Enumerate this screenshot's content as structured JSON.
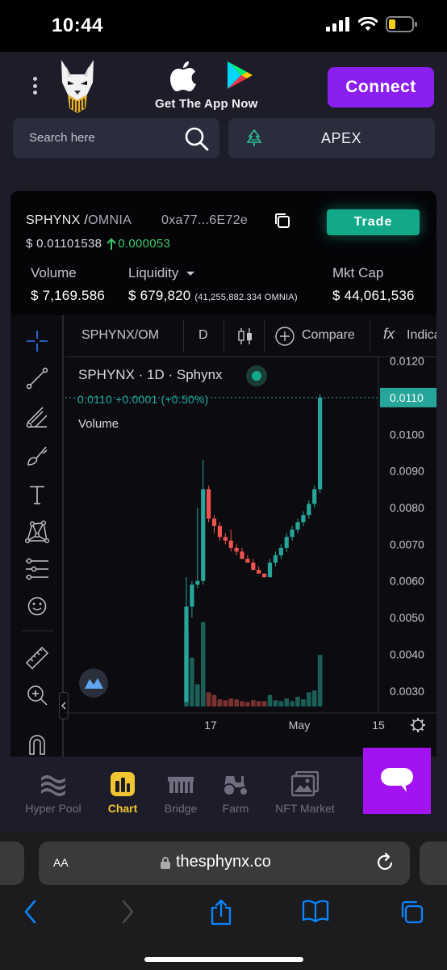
{
  "status": {
    "time": "10:44"
  },
  "header": {
    "store_caption": "Get The App Now",
    "connect_label": "Connect",
    "search_placeholder": "Search here",
    "token_name": "APEX"
  },
  "token": {
    "base": "SPHYNX /",
    "quote": "OMNIA",
    "contract": "0xa77...6E72e",
    "trade_label": "Trade",
    "price": "$ 0.01101538",
    "change": "0.000053"
  },
  "stats": {
    "volume_label": "Volume",
    "volume_value": "$ 7,169.586",
    "liquidity_label": "Liquidity",
    "liquidity_value": "$ 679,820",
    "liquidity_sub": "(41,255,882.334 OMNIA)",
    "mktcap_label": "Mkt Cap",
    "mktcap_value": "$ 44,061,536"
  },
  "chart_toolbar": {
    "symbol": "SPHYNX/OM",
    "interval": "D",
    "compare": "Compare",
    "indicators": "Indica"
  },
  "chart_legend": {
    "title": "SPHYNX · 1D · Sphynx",
    "ohlc": "0.0110 +0.0001 (+0.50%)",
    "volume": "Volume"
  },
  "chart_data": {
    "type": "candlestick",
    "y_ticks": [
      "0.0120",
      "0.0110",
      "0.0100",
      "0.0090",
      "0.0080",
      "0.0070",
      "0.0060",
      "0.0050",
      "0.0040",
      "0.0030"
    ],
    "x_ticks": [
      "17",
      "May",
      "15"
    ],
    "ylim": [
      0.0024,
      0.0121
    ],
    "last_price_label": "0.0110",
    "last_price": 0.011,
    "up_color": "#26a69a",
    "down_color": "#ef5350",
    "candles": [
      {
        "o": 0.0027,
        "h": 0.0061,
        "l": 0.0027,
        "c": 0.0053
      },
      {
        "o": 0.0053,
        "h": 0.006,
        "l": 0.005,
        "c": 0.0059
      },
      {
        "o": 0.0059,
        "h": 0.008,
        "l": 0.0058,
        "c": 0.006
      },
      {
        "o": 0.006,
        "h": 0.0093,
        "l": 0.0059,
        "c": 0.0085
      },
      {
        "o": 0.0085,
        "h": 0.0086,
        "l": 0.0076,
        "c": 0.0077
      },
      {
        "o": 0.0077,
        "h": 0.0078,
        "l": 0.0073,
        "c": 0.0075
      },
      {
        "o": 0.0075,
        "h": 0.0076,
        "l": 0.0071,
        "c": 0.0072
      },
      {
        "o": 0.0072,
        "h": 0.0073,
        "l": 0.007,
        "c": 0.0071
      },
      {
        "o": 0.0071,
        "h": 0.0074,
        "l": 0.0068,
        "c": 0.0069
      },
      {
        "o": 0.0069,
        "h": 0.007,
        "l": 0.0067,
        "c": 0.0068
      },
      {
        "o": 0.0068,
        "h": 0.0069,
        "l": 0.0066,
        "c": 0.0066
      },
      {
        "o": 0.0066,
        "h": 0.0067,
        "l": 0.0065,
        "c": 0.0065
      },
      {
        "o": 0.0065,
        "h": 0.0066,
        "l": 0.0063,
        "c": 0.0063
      },
      {
        "o": 0.0063,
        "h": 0.0064,
        "l": 0.0062,
        "c": 0.0062
      },
      {
        "o": 0.0062,
        "h": 0.0062,
        "l": 0.0061,
        "c": 0.0061
      },
      {
        "o": 0.0061,
        "h": 0.0066,
        "l": 0.0061,
        "c": 0.0065
      },
      {
        "o": 0.0065,
        "h": 0.0068,
        "l": 0.0064,
        "c": 0.0067
      },
      {
        "o": 0.0067,
        "h": 0.007,
        "l": 0.0066,
        "c": 0.0069
      },
      {
        "o": 0.0069,
        "h": 0.0073,
        "l": 0.0068,
        "c": 0.0072
      },
      {
        "o": 0.0072,
        "h": 0.0075,
        "l": 0.0071,
        "c": 0.0074
      },
      {
        "o": 0.0074,
        "h": 0.0077,
        "l": 0.0073,
        "c": 0.0076
      },
      {
        "o": 0.0076,
        "h": 0.0079,
        "l": 0.0075,
        "c": 0.0078
      },
      {
        "o": 0.0078,
        "h": 0.0082,
        "l": 0.0077,
        "c": 0.0081
      },
      {
        "o": 0.0081,
        "h": 0.0086,
        "l": 0.008,
        "c": 0.0085
      },
      {
        "o": 0.0085,
        "h": 0.0111,
        "l": 0.0084,
        "c": 0.011
      }
    ],
    "volumes": [
      0.85,
      0.55,
      0.25,
      0.95,
      0.16,
      0.13,
      0.08,
      0.07,
      0.09,
      0.08,
      0.06,
      0.05,
      0.07,
      0.06,
      0.06,
      0.13,
      0.07,
      0.06,
      0.09,
      0.06,
      0.11,
      0.08,
      0.16,
      0.18,
      0.58
    ]
  },
  "tabs": [
    {
      "label": "Hyper Pool"
    },
    {
      "label": "Chart"
    },
    {
      "label": "Bridge"
    },
    {
      "label": "Farm"
    },
    {
      "label": "NFT Market"
    }
  ],
  "safari": {
    "aa": "AA",
    "url": "thesphynx.co"
  },
  "colors": {
    "accent": "#8b1ff0",
    "trade": "#12a989",
    "active_tab": "#f2c633",
    "chat": "#a312f2"
  },
  "icons": [
    "menu-dots-icon",
    "apple-icon",
    "google-play-icon",
    "search-icon",
    "tree-icon",
    "copy-icon",
    "arrow-up-icon",
    "chevron-down-icon",
    "crosshair-icon",
    "trendline-icon",
    "fib-icon",
    "brush-icon",
    "text-icon",
    "pattern-icon",
    "prediction-icon",
    "emoji-icon",
    "ruler-icon",
    "zoom-icon",
    "magnet-icon",
    "candles-icon",
    "plus-icon",
    "fx-icon",
    "settings-icon",
    "chat-icon",
    "lock-icon",
    "reload-icon",
    "back-icon",
    "forward-icon",
    "share-icon",
    "bookmarks-icon",
    "tabs-icon"
  ]
}
